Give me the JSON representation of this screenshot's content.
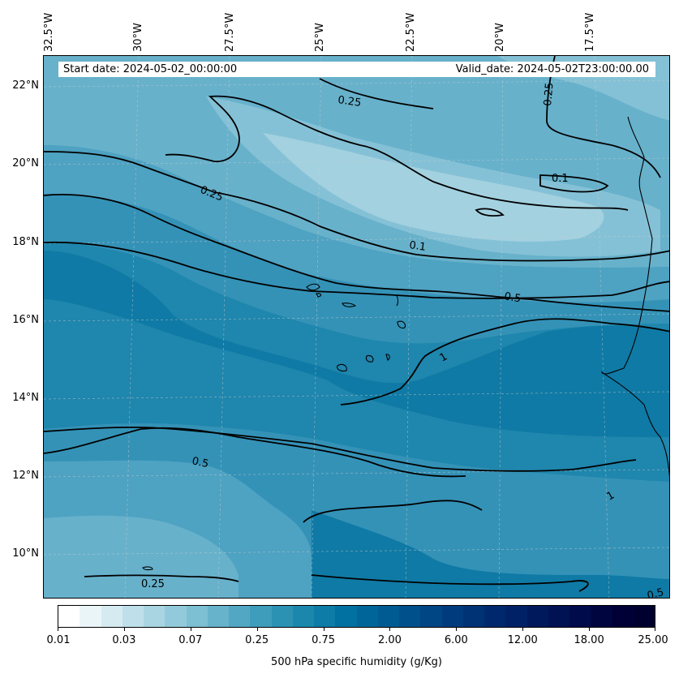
{
  "header": {
    "start_date": "Start date: 2024-05-02_00:00:00",
    "valid_date": "Valid_date: 2024-05-02T23:00:00.00"
  },
  "longitude_labels": [
    "32.5°W",
    "30°W",
    "27.5°W",
    "25°W",
    "22.5°W",
    "20°W",
    "17.5°W"
  ],
  "latitude_labels": [
    "22°N",
    "20°N",
    "18°N",
    "16°N",
    "14°N",
    "12°N",
    "10°N"
  ],
  "contour_labels": [
    "0.25",
    "0.25",
    "0.25",
    "0.25",
    "0.1",
    "0.1",
    "0.5",
    "0.5",
    "0.5",
    "1",
    "1"
  ],
  "colorbar": {
    "label": "500 hPa specific humidity (g/Kg)",
    "tick_labels": [
      "0.01",
      "0.03",
      "0.07",
      "0.25",
      "0.75",
      "2.00",
      "6.00",
      "12.00",
      "18.00",
      "25.00"
    ],
    "colors": [
      "#ffffff",
      "#eaf5f8",
      "#d5ebf1",
      "#bfe0ea",
      "#a9d5e2",
      "#93cadb",
      "#7dbfd3",
      "#67b3cb",
      "#52a8c3",
      "#3e9dbb",
      "#2c92b4",
      "#1c87ad",
      "#0d7ca7",
      "#0071a0",
      "#006699",
      "#005b92",
      "#00508b",
      "#004584",
      "#003b7d",
      "#003276",
      "#00296d",
      "#002165",
      "#00195c",
      "#001253",
      "#000b4b",
      "#00053f",
      "#000036",
      "#000030"
    ]
  },
  "fill_colors": {
    "lightest": "#a3d1e0",
    "light": "#85c1d6",
    "mid_light": "#67b1cb",
    "mid": "#4ea2c2",
    "mid_dark": "#3492b7",
    "dark": "#1f86ad",
    "darkest": "#0f7aa5"
  }
}
